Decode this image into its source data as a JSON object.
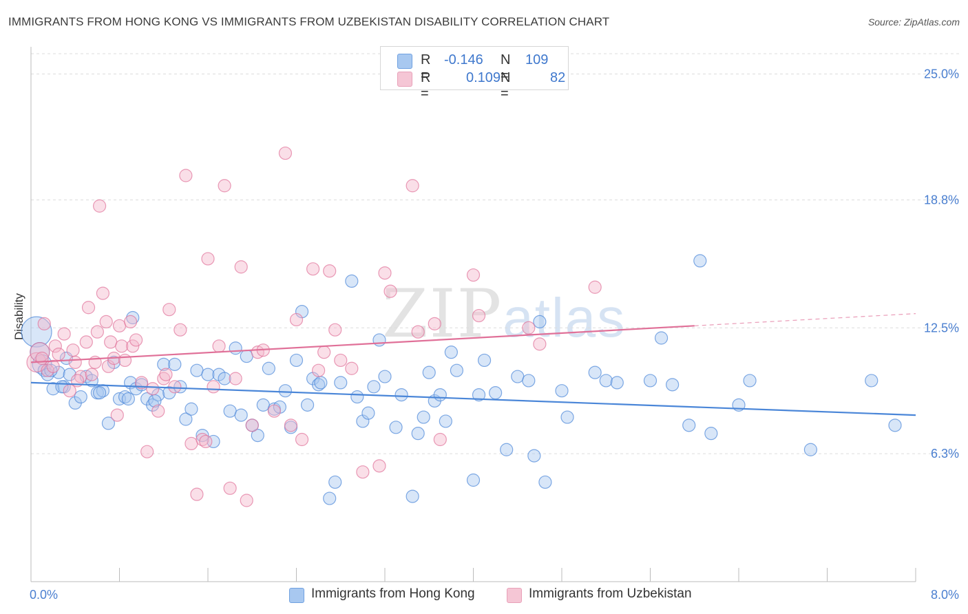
{
  "header": {
    "title": "IMMIGRANTS FROM HONG KONG VS IMMIGRANTS FROM UZBEKISTAN DISABILITY CORRELATION CHART",
    "source": "Source: ZipAtlas.com"
  },
  "watermark": {
    "zip": "ZIP",
    "atlas": "atlas"
  },
  "legend": {
    "rows": [
      {
        "r_key": "R =",
        "r_value": "-0.146",
        "n_key": "N =",
        "n_value": "109",
        "color": "#a8c8f0"
      },
      {
        "r_key": "R =",
        "r_value": "0.109",
        "n_key": "N =",
        "n_value": "82",
        "color": "#f5b8cb"
      }
    ]
  },
  "bottom_legend": {
    "items": [
      {
        "label": "Immigrants from Hong Kong",
        "color": "#a8c8f0"
      },
      {
        "label": "Immigrants from Uzbekistan",
        "color": "#f5b8cb"
      }
    ]
  },
  "chart_data": {
    "type": "scatter",
    "title": "IMMIGRANTS FROM HONG KONG VS IMMIGRANTS FROM UZBEKISTAN DISABILITY CORRELATION CHART",
    "xlabel": "",
    "ylabel": "Disability",
    "xlim": [
      0.0,
      8.0
    ],
    "ylim": [
      0.0,
      26.0
    ],
    "x_tick_labels": [
      "0.0%",
      "8.0%"
    ],
    "y_ticks": [
      6.3,
      12.5,
      18.8,
      25.0
    ],
    "y_tick_labels": [
      "6.3%",
      "12.5%",
      "18.8%",
      "25.0%"
    ],
    "grid": "horizontal dashed",
    "legend_position": "top-center",
    "series": [
      {
        "name": "Immigrants from Hong Kong",
        "color": "#4a86d8",
        "fill": "#a8c8f0",
        "trend": {
          "x": [
            0.0,
            8.0
          ],
          "y": [
            9.8,
            8.2
          ]
        },
        "points": [
          [
            0.05,
            12.3
          ],
          [
            0.08,
            11.3
          ],
          [
            0.1,
            10.7
          ],
          [
            0.12,
            10.4
          ],
          [
            0.15,
            10.2
          ],
          [
            0.2,
            9.5
          ],
          [
            0.25,
            10.3
          ],
          [
            0.3,
            9.6
          ],
          [
            0.32,
            11.0
          ],
          [
            0.35,
            10.2
          ],
          [
            0.4,
            8.8
          ],
          [
            0.45,
            9.1
          ],
          [
            0.5,
            10.1
          ],
          [
            0.55,
            9.9
          ],
          [
            0.6,
            9.3
          ],
          [
            0.65,
            9.4
          ],
          [
            0.7,
            7.8
          ],
          [
            0.75,
            10.8
          ],
          [
            0.8,
            9.0
          ],
          [
            0.85,
            9.1
          ],
          [
            0.9,
            9.8
          ],
          [
            0.92,
            13.0
          ],
          [
            0.95,
            9.5
          ],
          [
            1.0,
            9.7
          ],
          [
            1.05,
            9.0
          ],
          [
            1.1,
            8.7
          ],
          [
            1.15,
            9.2
          ],
          [
            1.2,
            10.7
          ],
          [
            1.25,
            9.3
          ],
          [
            1.3,
            10.7
          ],
          [
            1.35,
            9.6
          ],
          [
            1.4,
            8.0
          ],
          [
            1.45,
            8.5
          ],
          [
            1.5,
            10.4
          ],
          [
            1.55,
            7.2
          ],
          [
            1.6,
            10.2
          ],
          [
            1.65,
            6.9
          ],
          [
            1.7,
            10.2
          ],
          [
            1.75,
            10.0
          ],
          [
            1.8,
            8.4
          ],
          [
            1.85,
            11.5
          ],
          [
            1.9,
            8.2
          ],
          [
            1.95,
            11.1
          ],
          [
            2.0,
            7.7
          ],
          [
            2.05,
            7.2
          ],
          [
            2.1,
            8.7
          ],
          [
            2.15,
            10.5
          ],
          [
            2.2,
            8.5
          ],
          [
            2.25,
            8.6
          ],
          [
            2.3,
            9.4
          ],
          [
            2.35,
            7.6
          ],
          [
            2.4,
            10.9
          ],
          [
            2.45,
            13.3
          ],
          [
            2.5,
            8.7
          ],
          [
            2.55,
            10.0
          ],
          [
            2.6,
            9.7
          ],
          [
            2.7,
            4.1
          ],
          [
            2.75,
            4.9
          ],
          [
            2.8,
            9.8
          ],
          [
            2.9,
            14.8
          ],
          [
            2.95,
            9.1
          ],
          [
            3.0,
            7.9
          ],
          [
            3.05,
            8.3
          ],
          [
            3.1,
            9.6
          ],
          [
            3.15,
            11.9
          ],
          [
            3.2,
            10.1
          ],
          [
            3.3,
            7.6
          ],
          [
            3.35,
            9.2
          ],
          [
            3.45,
            4.2
          ],
          [
            3.5,
            7.3
          ],
          [
            3.55,
            8.1
          ],
          [
            3.6,
            10.3
          ],
          [
            3.65,
            8.9
          ],
          [
            3.7,
            9.2
          ],
          [
            3.8,
            11.3
          ],
          [
            3.85,
            10.4
          ],
          [
            4.0,
            5.0
          ],
          [
            4.05,
            9.2
          ],
          [
            4.1,
            10.9
          ],
          [
            4.2,
            9.3
          ],
          [
            4.3,
            6.5
          ],
          [
            4.4,
            10.1
          ],
          [
            4.5,
            9.9
          ],
          [
            4.55,
            6.2
          ],
          [
            4.6,
            12.8
          ],
          [
            4.65,
            4.9
          ],
          [
            4.8,
            9.4
          ],
          [
            5.1,
            10.3
          ],
          [
            5.2,
            9.9
          ],
          [
            5.3,
            9.8
          ],
          [
            5.6,
            9.9
          ],
          [
            5.7,
            12.0
          ],
          [
            5.8,
            9.7
          ],
          [
            5.95,
            7.7
          ],
          [
            6.05,
            15.8
          ],
          [
            6.15,
            7.3
          ],
          [
            6.4,
            8.7
          ],
          [
            6.5,
            9.9
          ],
          [
            7.05,
            6.5
          ],
          [
            7.6,
            9.9
          ],
          [
            8.3,
            7.7
          ],
          [
            0.18,
            10.4
          ],
          [
            0.28,
            9.6
          ],
          [
            0.62,
            9.3
          ],
          [
            0.88,
            9.0
          ],
          [
            1.12,
            8.9
          ],
          [
            2.62,
            9.8
          ],
          [
            3.75,
            7.9
          ],
          [
            4.85,
            8.1
          ]
        ]
      },
      {
        "name": "Immigrants from Uzbekistan",
        "color": "#e07098",
        "fill": "#f5b8cb",
        "trend": {
          "x": [
            0.0,
            6.0
          ],
          "y": [
            10.8,
            12.6
          ]
        },
        "trend_extension": {
          "x": [
            6.0,
            8.0
          ],
          "y": [
            12.6,
            13.2
          ]
        },
        "points": [
          [
            0.05,
            10.8
          ],
          [
            0.08,
            11.3
          ],
          [
            0.1,
            11.0
          ],
          [
            0.12,
            12.7
          ],
          [
            0.15,
            10.4
          ],
          [
            0.2,
            10.6
          ],
          [
            0.22,
            11.6
          ],
          [
            0.25,
            11.2
          ],
          [
            0.3,
            12.2
          ],
          [
            0.35,
            9.4
          ],
          [
            0.38,
            11.4
          ],
          [
            0.4,
            10.8
          ],
          [
            0.45,
            10.1
          ],
          [
            0.5,
            11.8
          ],
          [
            0.52,
            13.5
          ],
          [
            0.55,
            10.2
          ],
          [
            0.6,
            12.3
          ],
          [
            0.62,
            18.5
          ],
          [
            0.65,
            14.2
          ],
          [
            0.68,
            12.8
          ],
          [
            0.7,
            10.6
          ],
          [
            0.72,
            11.8
          ],
          [
            0.75,
            11.0
          ],
          [
            0.78,
            8.2
          ],
          [
            0.8,
            12.6
          ],
          [
            0.82,
            11.6
          ],
          [
            0.85,
            10.9
          ],
          [
            0.9,
            12.8
          ],
          [
            0.92,
            11.6
          ],
          [
            0.95,
            11.9
          ],
          [
            1.0,
            9.8
          ],
          [
            1.05,
            6.4
          ],
          [
            1.1,
            9.5
          ],
          [
            1.15,
            8.4
          ],
          [
            1.2,
            10.0
          ],
          [
            1.25,
            13.4
          ],
          [
            1.3,
            9.6
          ],
          [
            1.35,
            12.4
          ],
          [
            1.4,
            20.0
          ],
          [
            1.45,
            6.8
          ],
          [
            1.5,
            4.3
          ],
          [
            1.55,
            7.0
          ],
          [
            1.6,
            15.9
          ],
          [
            1.65,
            9.6
          ],
          [
            1.7,
            11.6
          ],
          [
            1.75,
            19.5
          ],
          [
            1.8,
            4.6
          ],
          [
            1.85,
            10.0
          ],
          [
            1.9,
            15.5
          ],
          [
            1.95,
            4.0
          ],
          [
            2.0,
            7.7
          ],
          [
            2.05,
            11.3
          ],
          [
            2.1,
            11.4
          ],
          [
            2.2,
            8.4
          ],
          [
            2.3,
            21.1
          ],
          [
            2.35,
            7.7
          ],
          [
            2.4,
            12.9
          ],
          [
            2.45,
            7.0
          ],
          [
            2.55,
            15.4
          ],
          [
            2.6,
            10.4
          ],
          [
            2.65,
            11.3
          ],
          [
            2.7,
            15.3
          ],
          [
            2.75,
            12.4
          ],
          [
            2.8,
            10.9
          ],
          [
            2.9,
            10.5
          ],
          [
            3.0,
            5.4
          ],
          [
            3.15,
            5.7
          ],
          [
            3.2,
            15.2
          ],
          [
            3.25,
            14.3
          ],
          [
            3.45,
            19.5
          ],
          [
            3.5,
            12.3
          ],
          [
            3.65,
            12.7
          ],
          [
            3.7,
            7.0
          ],
          [
            4.0,
            15.1
          ],
          [
            4.05,
            13.1
          ],
          [
            4.5,
            12.5
          ],
          [
            4.6,
            11.7
          ],
          [
            5.1,
            14.5
          ],
          [
            0.42,
            9.9
          ],
          [
            1.22,
            10.2
          ],
          [
            0.58,
            10.8
          ],
          [
            1.58,
            6.9
          ]
        ]
      }
    ]
  }
}
